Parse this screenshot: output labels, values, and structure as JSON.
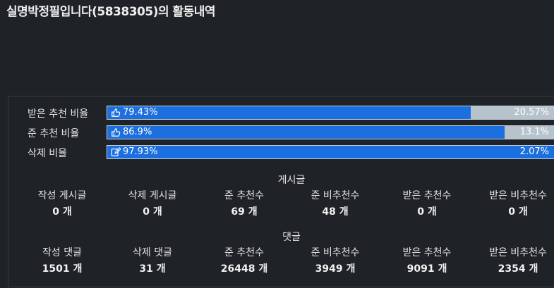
{
  "page": {
    "title": "실명박정필입니다(5838305)의 활동내역"
  },
  "ratios": [
    {
      "label": "받은 추천 비율",
      "icon": "thumbs-up-icon",
      "positive_text": "79.43%",
      "negative_text": "20.57%",
      "fill_percent": 79.43
    },
    {
      "label": "준 추천 비율",
      "icon": "thumbs-up-icon",
      "positive_text": "86.9%",
      "negative_text": "13.1%",
      "fill_percent": 86.9
    },
    {
      "label": "삭제 비율",
      "icon": "edit-icon",
      "positive_text": "97.93%",
      "negative_text": "2.07%",
      "fill_percent": 97.93
    }
  ],
  "posts": {
    "title": "게시글",
    "stats": [
      {
        "label": "작성 게시글",
        "value": "0 개"
      },
      {
        "label": "삭제 게시글",
        "value": "0 개"
      },
      {
        "label": "준 추천수",
        "value": "69 개"
      },
      {
        "label": "준 비추천수",
        "value": "48 개"
      },
      {
        "label": "받은 추천수",
        "value": "0 개"
      },
      {
        "label": "받은 비추천수",
        "value": "0 개"
      }
    ]
  },
  "comments": {
    "title": "댓글",
    "stats": [
      {
        "label": "작성 댓글",
        "value": "1501 개"
      },
      {
        "label": "삭제 댓글",
        "value": "31 개"
      },
      {
        "label": "준 추천수",
        "value": "26448 개"
      },
      {
        "label": "준 비추천수",
        "value": "3949 개"
      },
      {
        "label": "받은 추천수",
        "value": "9091 개"
      },
      {
        "label": "받은 비추천수",
        "value": "2354 개"
      }
    ]
  },
  "colors": {
    "background": "#1f2226",
    "bar_positive": "#1c6fde",
    "bar_negative": "#b6c3cc"
  }
}
